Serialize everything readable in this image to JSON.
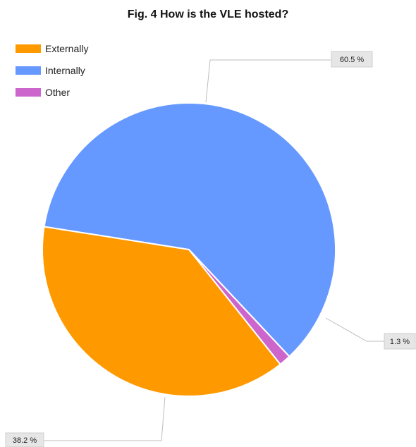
{
  "chart_data": {
    "type": "pie",
    "title": "Fig. 4 How is the VLE hosted?",
    "legend_position": "top-left",
    "slices": [
      {
        "name": "Internally",
        "value": 60.5,
        "label": "60.5 %",
        "color": "#6699ff"
      },
      {
        "name": "Other",
        "value": 1.3,
        "label": "1.3 %",
        "color": "#cc66cc"
      },
      {
        "name": "Externally",
        "value": 38.2,
        "label": "38.2 %",
        "color": "#ff9900"
      }
    ],
    "legend": [
      {
        "name": "Externally",
        "color": "#ff9900"
      },
      {
        "name": "Internally",
        "color": "#6699ff"
      },
      {
        "name": "Other",
        "color": "#cc66cc"
      }
    ]
  }
}
